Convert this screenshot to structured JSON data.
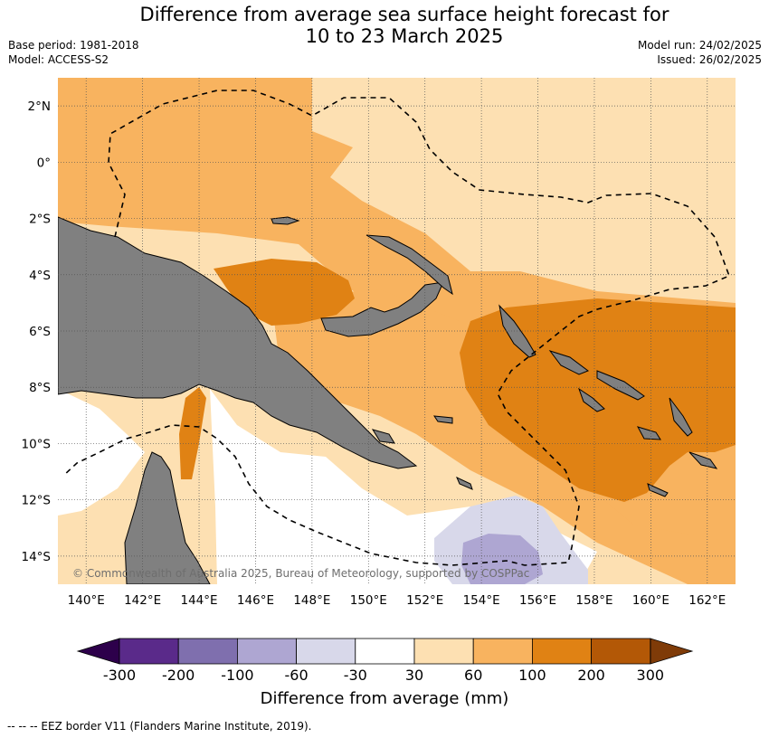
{
  "header": {
    "title_line1": "Difference from average sea surface height forecast for",
    "title_line2": "10 to 23 March 2025",
    "base_period": "Base period: 1981-2018",
    "model": "Model: ACCESS-S2",
    "model_run": "Model run: 24/02/2025",
    "issued": "Issued: 26/02/2025"
  },
  "map": {
    "copyright": "© Commonwealth of Australia 2025, Bureau of Meteorology, supported by COSPPac",
    "lon_labels": [
      "140°E",
      "142°E",
      "144°E",
      "146°E",
      "148°E",
      "150°E",
      "152°E",
      "154°E",
      "156°E",
      "158°E",
      "160°E",
      "162°E"
    ],
    "lat_labels": [
      "2°N",
      "0°",
      "2°S",
      "4°S",
      "6°S",
      "8°S",
      "10°S",
      "12°S",
      "14°S"
    ],
    "lon_range": [
      139,
      163
    ],
    "lat_range": [
      -15,
      3
    ],
    "land_color": "#808080",
    "grid": "dotted"
  },
  "colorbar": {
    "title": "Difference from average (mm)",
    "tick_labels": [
      "-300",
      "-200",
      "-100",
      "-60",
      "-30",
      "30",
      "60",
      "100",
      "200",
      "300"
    ],
    "colors": [
      "#5a2a8a",
      "#7f6fae",
      "#aea6d2",
      "#d8d8ea",
      "#ffffff",
      "#fde0b2",
      "#f8b35f",
      "#e08214",
      "#b35806"
    ],
    "under_color": "#2d004b",
    "over_color": "#7f3b08"
  },
  "footnote": "-- -- -- EEZ border V11 (Flanders Marine Institute, 2019)."
}
